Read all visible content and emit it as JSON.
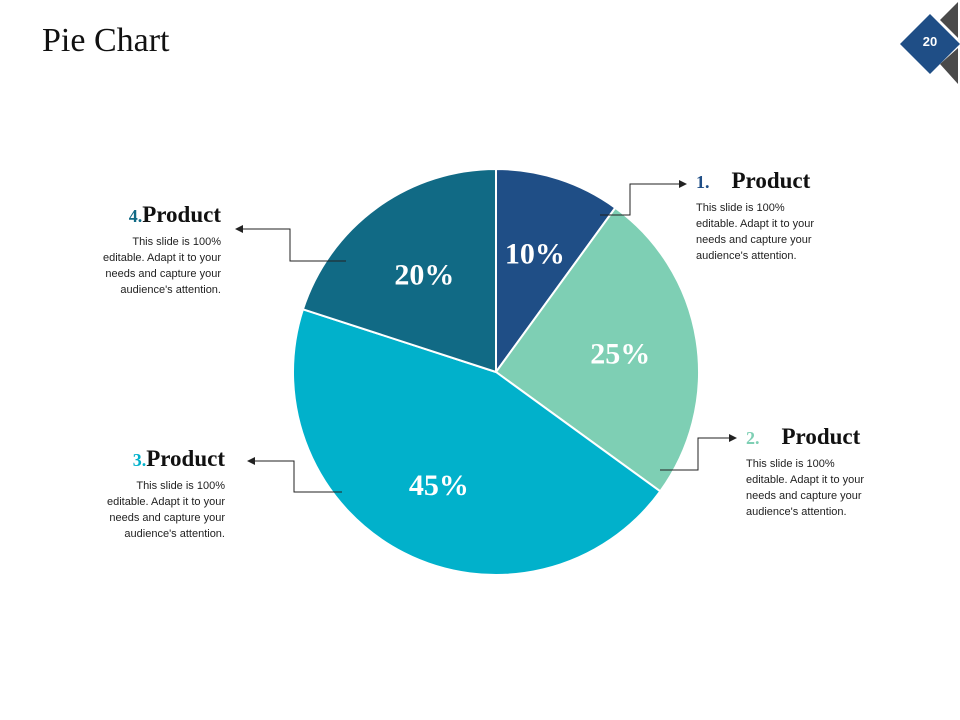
{
  "slide": {
    "title": "Pie Chart",
    "page_number": "20"
  },
  "colors": {
    "dark_blue": "#1f4e86",
    "mint": "#7ecfb4",
    "cyan": "#01b1cb",
    "teal": "#116a85",
    "gray": "#4a4a4a"
  },
  "chart_data": {
    "type": "pie",
    "categories": [
      "1.",
      "2.",
      "3.",
      "4."
    ],
    "values": [
      10,
      25,
      45,
      20
    ],
    "labels": [
      "10%",
      "25%",
      "45%",
      "20%"
    ],
    "colors": [
      "#1f4e86",
      "#7ecfb4",
      "#01b1cb",
      "#116a85"
    ]
  },
  "callouts": [
    {
      "num": "1.",
      "title": "Product",
      "desc_lines": [
        "This slide is 100%",
        "editable. Adapt it to your",
        "needs and capture your",
        "audience's attention."
      ],
      "num_color": "#1f4e86"
    },
    {
      "num": "2.",
      "title": "Product",
      "desc_lines": [
        "This slide is 100%",
        "editable. Adapt it to your",
        "needs and capture your",
        "audience's attention."
      ],
      "num_color": "#7ecfb4"
    },
    {
      "num": "3.",
      "title": "Product",
      "desc_lines": [
        "This slide is 100%",
        "editable. Adapt it to your",
        "needs and capture your",
        "audience's attention."
      ],
      "num_color": "#01b1cb"
    },
    {
      "num": "4.",
      "title": "Product",
      "desc_lines": [
        "This slide is 100%",
        "editable. Adapt it to your",
        "needs and capture your",
        "audience's attention."
      ],
      "num_color": "#116a85"
    }
  ]
}
